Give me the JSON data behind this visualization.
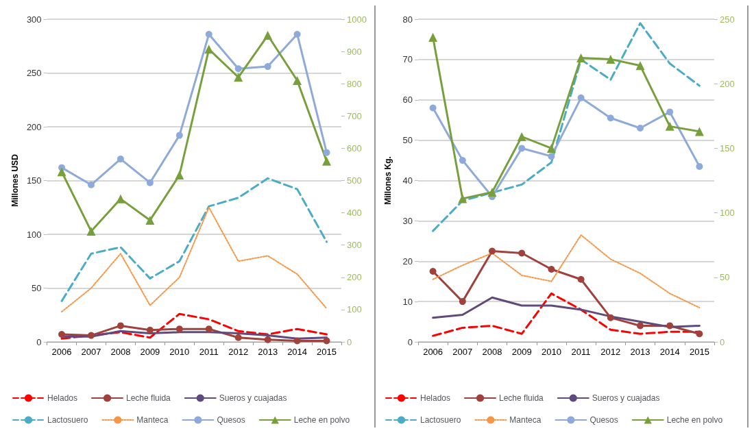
{
  "chart_data": [
    {
      "type": "line",
      "ylabel": "Millones USD",
      "categories": [
        "2006",
        "2007",
        "2008",
        "2009",
        "2010",
        "2011",
        "2012",
        "2013",
        "2014",
        "2015"
      ],
      "ylim": [
        0,
        300
      ],
      "yticks": [
        0,
        50,
        100,
        150,
        200,
        250,
        300
      ],
      "y2lim": [
        0,
        1000
      ],
      "y2ticks": [
        0,
        100,
        200,
        300,
        400,
        500,
        600,
        700,
        800,
        900,
        1000
      ],
      "grid": "y",
      "legend": "bottom",
      "series": [
        {
          "name": "Helados",
          "color": "#ff0000",
          "line_style": "dashed",
          "marker": "none",
          "values": [
            3,
            6,
            9,
            4,
            26,
            21,
            10,
            7,
            12,
            7
          ]
        },
        {
          "name": "Leche fluida",
          "color": "#a0413c",
          "line_style": "solid",
          "marker": "circle",
          "values": [
            7,
            6,
            15,
            11,
            12,
            12,
            4,
            2,
            1,
            1
          ]
        },
        {
          "name": "Sueros y cuajadas",
          "color": "#604a7b",
          "line_style": "solid",
          "marker": "none",
          "values": [
            5,
            5,
            10,
            8,
            9,
            9,
            8,
            6,
            3,
            4
          ]
        },
        {
          "name": "Lactosuero",
          "color": "#4bacc6",
          "line_style": "dashed",
          "marker": "none",
          "values": [
            38,
            82,
            88,
            59,
            75,
            126,
            134,
            152,
            142,
            93
          ]
        },
        {
          "name": "Manteca",
          "color": "#f79646",
          "line_style": "dotted",
          "marker": "none",
          "values": [
            28,
            50,
            82,
            34,
            60,
            125,
            75,
            80,
            63,
            31
          ]
        },
        {
          "name": "Quesos",
          "color": "#8eaadb",
          "line_style": "solid",
          "marker": "circle",
          "values": [
            162,
            146,
            170,
            148,
            192,
            286,
            254,
            256,
            286,
            176
          ]
        },
        {
          "name": "Leche en polvo",
          "color": "#77a03c",
          "line_style": "solid",
          "marker": "triangle",
          "axis": "y2",
          "values": [
            527,
            343,
            443,
            377,
            517,
            907,
            820,
            950,
            810,
            560
          ]
        }
      ]
    },
    {
      "type": "line",
      "ylabel": "Millones Kg.",
      "categories": [
        "2006",
        "2007",
        "2008",
        "2009",
        "2010",
        "2011",
        "2012",
        "2013",
        "2014",
        "2015"
      ],
      "ylim": [
        0,
        80
      ],
      "yticks": [
        0,
        10,
        20,
        30,
        40,
        50,
        60,
        70,
        80
      ],
      "y2lim": [
        0,
        250
      ],
      "y2ticks": [
        0,
        50,
        100,
        150,
        200,
        250
      ],
      "grid": "y",
      "legend": "bottom",
      "series": [
        {
          "name": "Helados",
          "color": "#ff0000",
          "line_style": "dashed",
          "marker": "none",
          "values": [
            1.5,
            3.5,
            4,
            2,
            12,
            8,
            3,
            2,
            2.5,
            2.5
          ]
        },
        {
          "name": "Leche fluida",
          "color": "#a0413c",
          "line_style": "solid",
          "marker": "circle",
          "values": [
            17.5,
            10,
            22.5,
            22,
            18,
            15.5,
            6,
            4,
            4,
            2
          ]
        },
        {
          "name": "Sueros y cuajadas",
          "color": "#604a7b",
          "line_style": "solid",
          "marker": "none",
          "values": [
            6,
            6.7,
            11,
            9,
            9,
            8,
            6.3,
            5,
            3.7,
            4
          ]
        },
        {
          "name": "Lactosuero",
          "color": "#4bacc6",
          "line_style": "dashed",
          "marker": "none",
          "values": [
            27.5,
            35,
            37,
            39,
            44.5,
            70,
            65,
            79,
            69,
            63.5
          ]
        },
        {
          "name": "Manteca",
          "color": "#f79646",
          "line_style": "dotted",
          "marker": "none",
          "values": [
            15.5,
            19,
            22,
            16.5,
            15,
            26.5,
            20.5,
            17,
            12,
            8.5
          ]
        },
        {
          "name": "Quesos",
          "color": "#8eaadb",
          "line_style": "solid",
          "marker": "circle",
          "values": [
            58,
            45,
            36,
            48,
            46,
            60.5,
            55.5,
            53,
            57,
            43.5
          ]
        },
        {
          "name": "Leche en polvo",
          "color": "#77a03c",
          "line_style": "solid",
          "marker": "triangle",
          "axis": "y2",
          "values": [
            236,
            111,
            116,
            159,
            150,
            220,
            219,
            214,
            167,
            163
          ]
        }
      ]
    }
  ]
}
